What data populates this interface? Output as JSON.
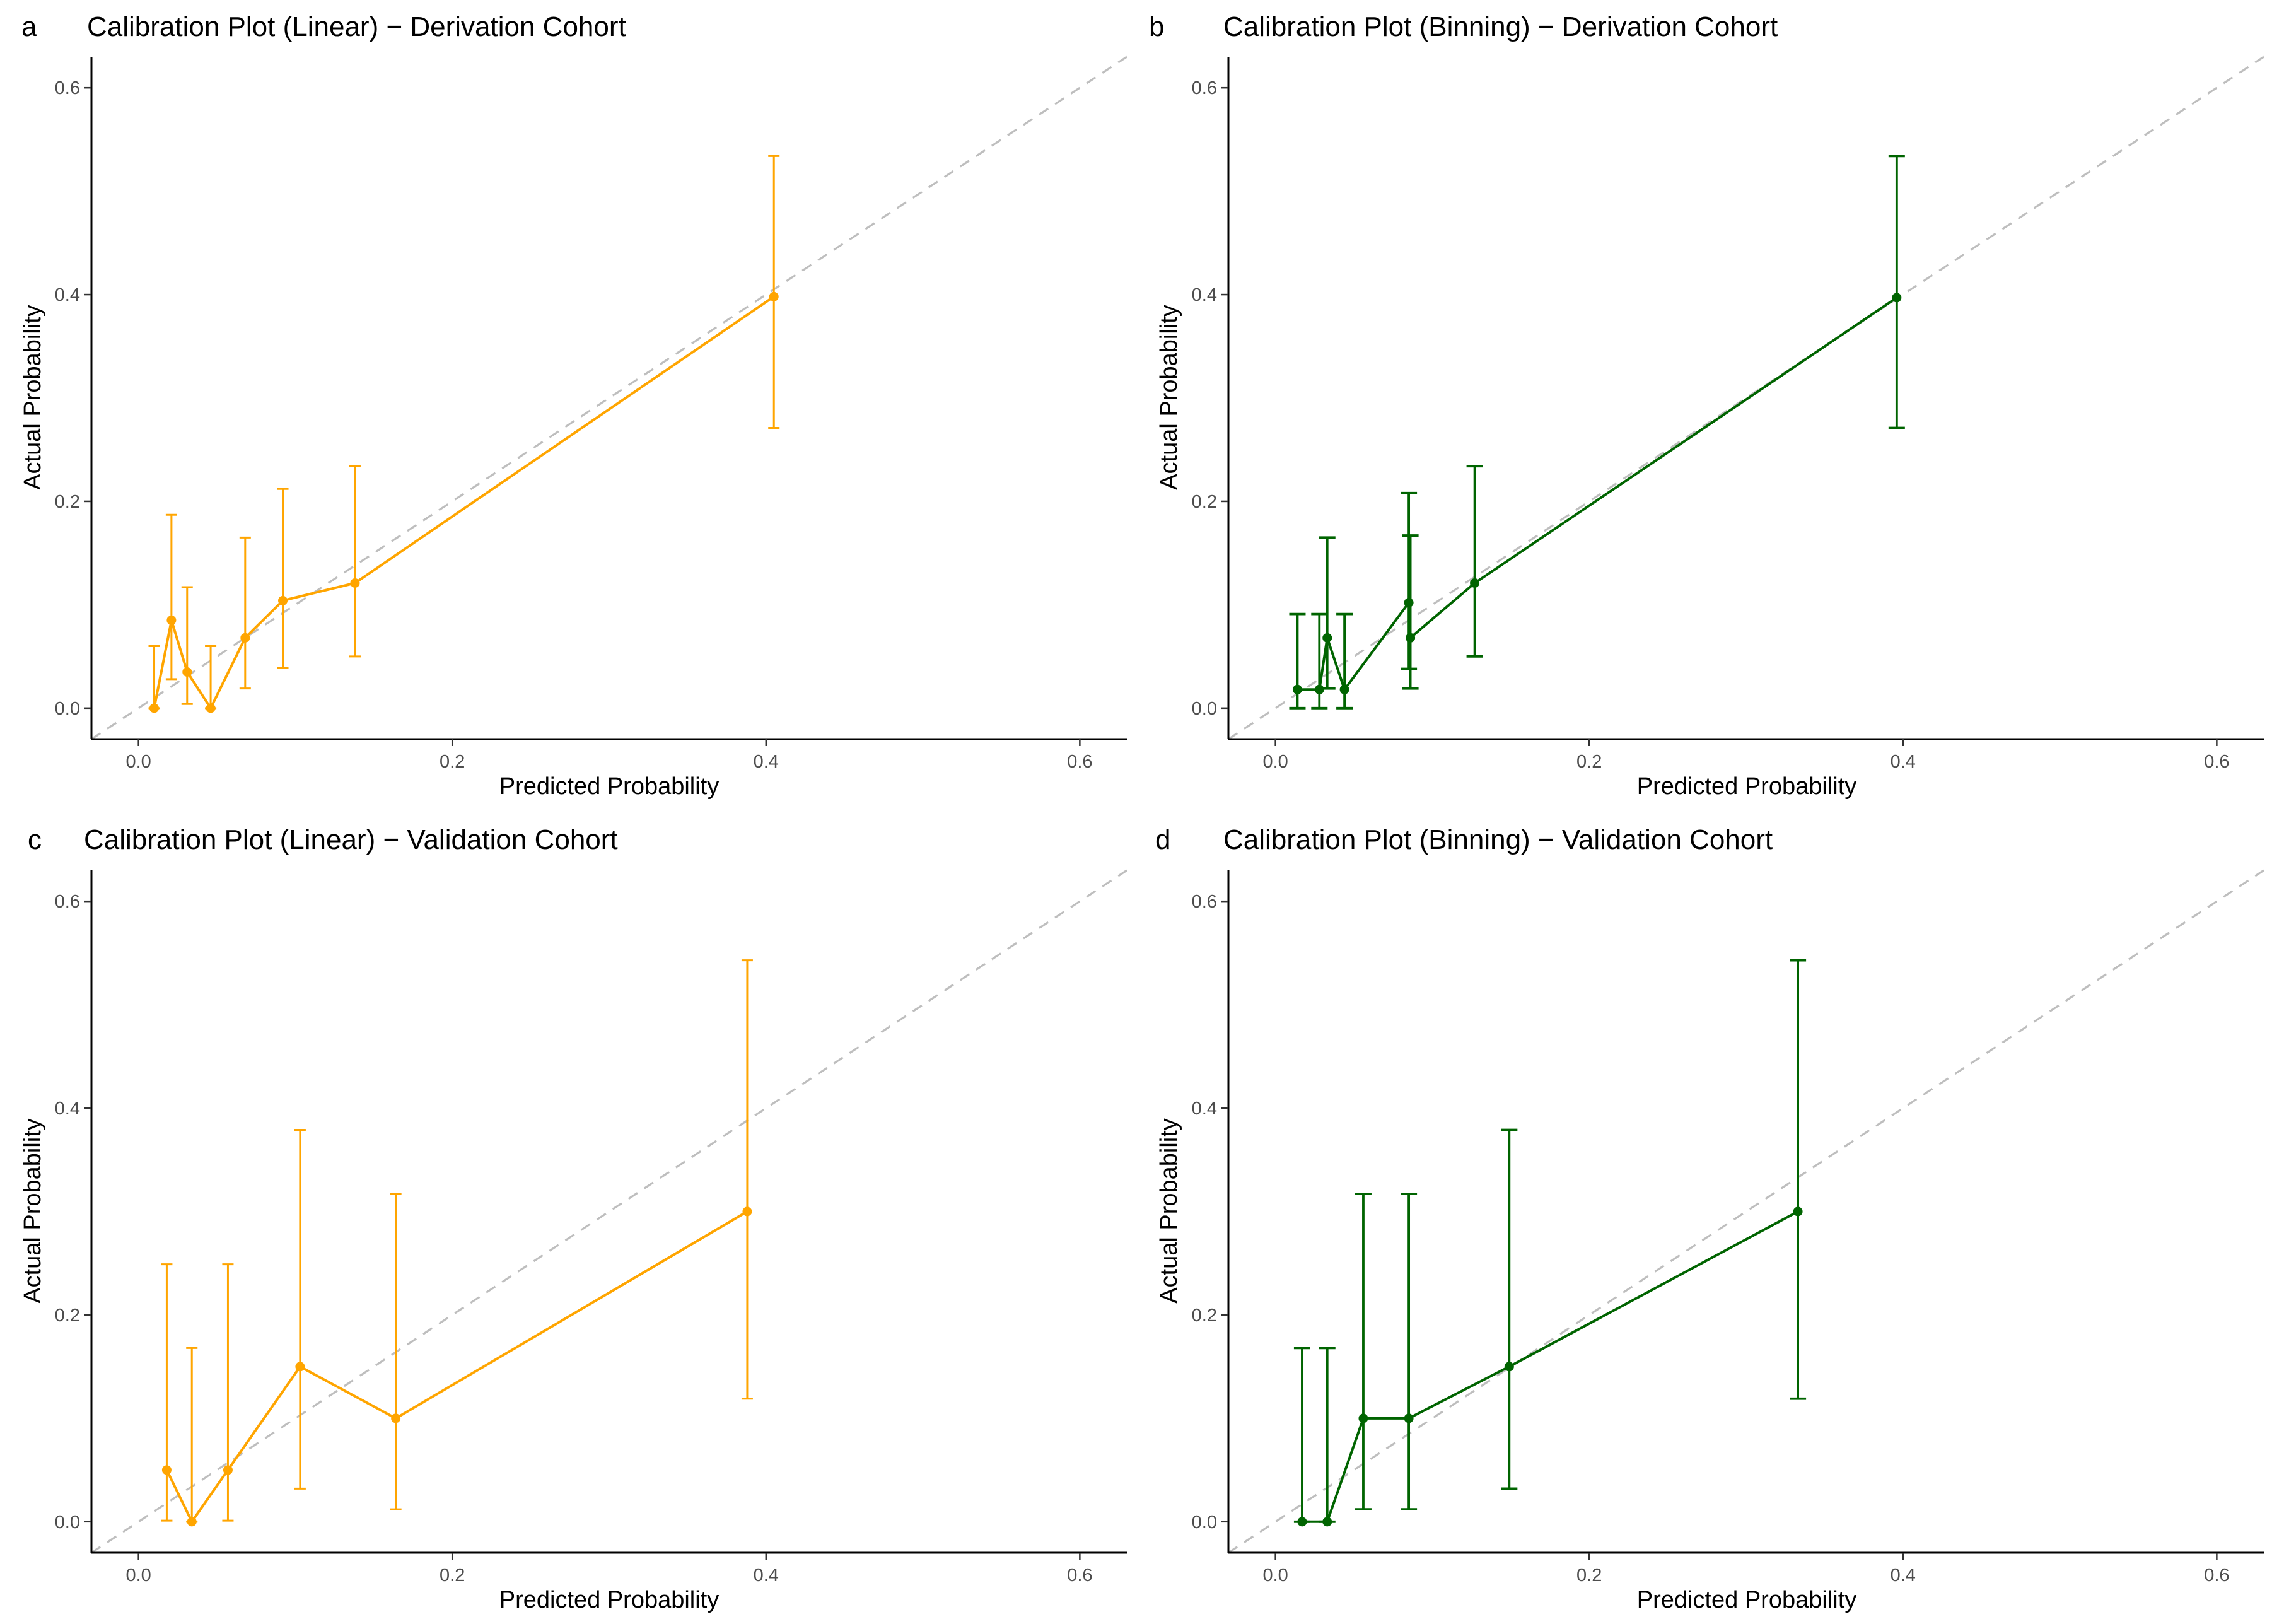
{
  "figure": {
    "background": "#ffffff",
    "diagonal_color": "#bebebe",
    "axis_color": "#000000"
  },
  "chart_data": [
    {
      "type": "line",
      "panel_letter": "a",
      "title": "Calibration Plot (Linear) − Derivation Cohort",
      "xlabel": "Predicted Probability",
      "ylabel": "Actual Probability",
      "xlim": [
        -0.03,
        0.63
      ],
      "ylim": [
        -0.03,
        0.63
      ],
      "xticks": [
        0.0,
        0.2,
        0.4,
        0.6
      ],
      "yticks": [
        0.0,
        0.2,
        0.4,
        0.6
      ],
      "xtick_labels": [
        "0.0",
        "0.2",
        "0.4",
        "0.6"
      ],
      "ytick_labels": [
        "0.0",
        "0.2",
        "0.4",
        "0.6"
      ],
      "grid": false,
      "reference_line": "diagonal y = x, dashed",
      "color": "#FFA500",
      "error_cap": "narrow",
      "points": [
        {
          "x": 0.01,
          "y": 0.0,
          "lower": 0.0,
          "upper": 0.06
        },
        {
          "x": 0.021,
          "y": 0.085,
          "lower": 0.028,
          "upper": 0.187
        },
        {
          "x": 0.031,
          "y": 0.035,
          "lower": 0.004,
          "upper": 0.117
        },
        {
          "x": 0.046,
          "y": 0.0,
          "lower": 0.0,
          "upper": 0.06
        },
        {
          "x": 0.068,
          "y": 0.068,
          "lower": 0.019,
          "upper": 0.165
        },
        {
          "x": 0.092,
          "y": 0.104,
          "lower": 0.039,
          "upper": 0.212
        },
        {
          "x": 0.138,
          "y": 0.121,
          "lower": 0.05,
          "upper": 0.234
        },
        {
          "x": 0.405,
          "y": 0.398,
          "lower": 0.271,
          "upper": 0.534
        }
      ]
    },
    {
      "type": "line",
      "panel_letter": "b",
      "title": "Calibration Plot (Binning) − Derivation Cohort",
      "xlabel": "Predicted Probability",
      "ylabel": "Actual Probability",
      "xlim": [
        -0.03,
        0.63
      ],
      "ylim": [
        -0.03,
        0.63
      ],
      "xticks": [
        0.0,
        0.2,
        0.4,
        0.6
      ],
      "yticks": [
        0.0,
        0.2,
        0.4,
        0.6
      ],
      "xtick_labels": [
        "0.0",
        "0.2",
        "0.4",
        "0.6"
      ],
      "ytick_labels": [
        "0.0",
        "0.2",
        "0.4",
        "0.6"
      ],
      "grid": false,
      "reference_line": "diagonal y = x, dashed",
      "color": "#006400",
      "error_cap": "wide",
      "points": [
        {
          "x": 0.014,
          "y": 0.018,
          "lower": 0.0,
          "upper": 0.091
        },
        {
          "x": 0.028,
          "y": 0.018,
          "lower": 0.0,
          "upper": 0.091
        },
        {
          "x": 0.033,
          "y": 0.068,
          "lower": 0.019,
          "upper": 0.165
        },
        {
          "x": 0.044,
          "y": 0.018,
          "lower": 0.0,
          "upper": 0.091
        },
        {
          "x": 0.085,
          "y": 0.102,
          "lower": 0.038,
          "upper": 0.208
        },
        {
          "x": 0.086,
          "y": 0.068,
          "lower": 0.019,
          "upper": 0.167
        },
        {
          "x": 0.127,
          "y": 0.121,
          "lower": 0.05,
          "upper": 0.234
        },
        {
          "x": 0.396,
          "y": 0.397,
          "lower": 0.271,
          "upper": 0.534
        }
      ]
    },
    {
      "type": "line",
      "panel_letter": "c",
      "title": "Calibration Plot (Linear) − Validation Cohort",
      "xlabel": "Predicted Probability",
      "ylabel": "Actual Probability",
      "xlim": [
        -0.03,
        0.63
      ],
      "ylim": [
        -0.03,
        0.63
      ],
      "xticks": [
        0.0,
        0.2,
        0.4,
        0.6
      ],
      "yticks": [
        0.0,
        0.2,
        0.4,
        0.6
      ],
      "xtick_labels": [
        "0.0",
        "0.2",
        "0.4",
        "0.6"
      ],
      "ytick_labels": [
        "0.0",
        "0.2",
        "0.4",
        "0.6"
      ],
      "grid": false,
      "reference_line": "diagonal y = x, dashed",
      "color": "#FFA500",
      "error_cap": "narrow",
      "points": [
        {
          "x": 0.018,
          "y": 0.05,
          "lower": 0.001,
          "upper": 0.249
        },
        {
          "x": 0.034,
          "y": 0.0,
          "lower": 0.0,
          "upper": 0.168
        },
        {
          "x": 0.057,
          "y": 0.05,
          "lower": 0.001,
          "upper": 0.249
        },
        {
          "x": 0.103,
          "y": 0.15,
          "lower": 0.032,
          "upper": 0.379
        },
        {
          "x": 0.164,
          "y": 0.1,
          "lower": 0.012,
          "upper": 0.317
        },
        {
          "x": 0.388,
          "y": 0.3,
          "lower": 0.119,
          "upper": 0.543
        }
      ]
    },
    {
      "type": "line",
      "panel_letter": "d",
      "title": "Calibration Plot (Binning) − Validation Cohort",
      "xlabel": "Predicted Probability",
      "ylabel": "Actual Probability",
      "xlim": [
        -0.03,
        0.63
      ],
      "ylim": [
        -0.03,
        0.63
      ],
      "xticks": [
        0.0,
        0.2,
        0.4,
        0.6
      ],
      "yticks": [
        0.0,
        0.2,
        0.4,
        0.6
      ],
      "xtick_labels": [
        "0.0",
        "0.2",
        "0.4",
        "0.6"
      ],
      "ytick_labels": [
        "0.0",
        "0.2",
        "0.4",
        "0.6"
      ],
      "grid": false,
      "reference_line": "diagonal y = x, dashed",
      "color": "#006400",
      "error_cap": "wide",
      "points": [
        {
          "x": 0.017,
          "y": 0.0,
          "lower": 0.0,
          "upper": 0.168
        },
        {
          "x": 0.033,
          "y": 0.0,
          "lower": 0.0,
          "upper": 0.168
        },
        {
          "x": 0.056,
          "y": 0.1,
          "lower": 0.012,
          "upper": 0.317
        },
        {
          "x": 0.085,
          "y": 0.1,
          "lower": 0.012,
          "upper": 0.317
        },
        {
          "x": 0.149,
          "y": 0.15,
          "lower": 0.032,
          "upper": 0.379
        },
        {
          "x": 0.333,
          "y": 0.3,
          "lower": 0.119,
          "upper": 0.543
        }
      ]
    }
  ]
}
